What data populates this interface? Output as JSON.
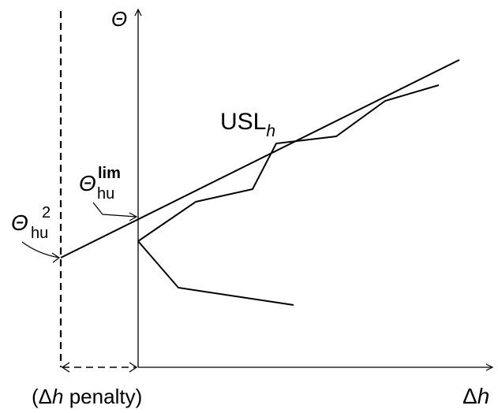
{
  "axes": {
    "y_label": "Θ",
    "x_label_delta": "Δ",
    "x_label_var": "h"
  },
  "labels": {
    "usl_main": "USL",
    "usl_sub": "h",
    "theta_lim_base": "Θ",
    "theta_lim_sub": "hu",
    "theta_lim_sup": "lim",
    "theta_2_base": "Θ",
    "theta_2_sub": "hu",
    "theta_2_sup": "2",
    "penalty_open": "(Δ",
    "penalty_var": "h",
    "penalty_rest": " penalty)"
  },
  "colors": {
    "line": "#000000",
    "background": "#ffffff"
  }
}
